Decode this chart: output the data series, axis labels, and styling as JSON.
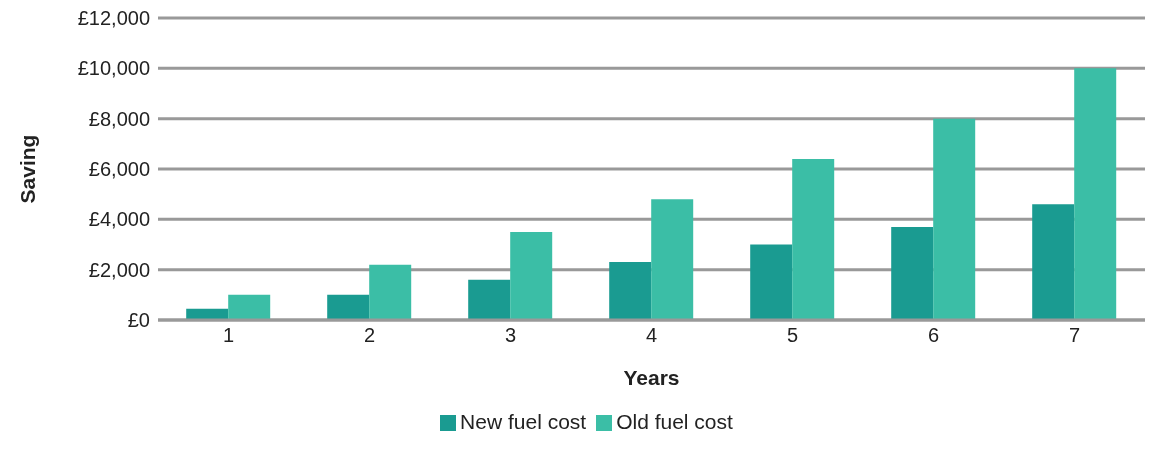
{
  "chart_data": {
    "type": "bar",
    "xlabel": "Years",
    "ylabel": "Saving",
    "categories": [
      "1",
      "2",
      "3",
      "4",
      "5",
      "6",
      "7"
    ],
    "series": [
      {
        "name": "New fuel cost",
        "color": "#1a9b91",
        "values": [
          450,
          1000,
          1600,
          2300,
          3000,
          3700,
          4600
        ]
      },
      {
        "name": "Old fuel cost",
        "color": "#3bbea6",
        "values": [
          1000,
          2200,
          3500,
          4800,
          6400,
          8000,
          10000
        ]
      }
    ],
    "ylim": [
      0,
      12000
    ],
    "yticks": [
      {
        "value": 0,
        "label": "£0"
      },
      {
        "value": 2000,
        "label": "£2,000"
      },
      {
        "value": 4000,
        "label": "£4,000"
      },
      {
        "value": 6000,
        "label": "£6,000"
      },
      {
        "value": 8000,
        "label": "£8,000"
      },
      {
        "value": 10000,
        "label": "£10,000"
      },
      {
        "value": 12000,
        "label": "£12,000"
      }
    ],
    "grid": "y",
    "legend": "bottom"
  }
}
